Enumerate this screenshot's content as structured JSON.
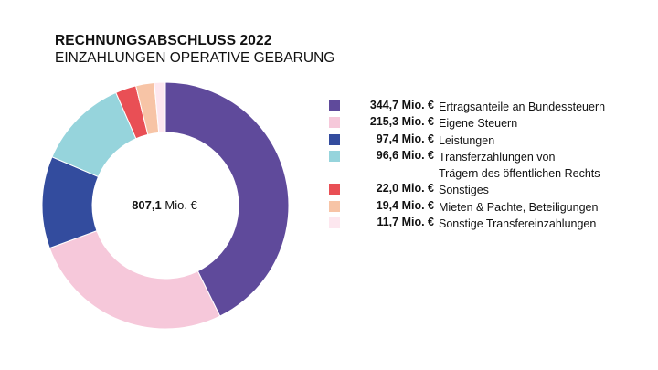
{
  "title": "RECHNUNGSABSCHLUSS 2022",
  "subtitle": "EINZAHLUNGEN OPERATIVE GEBARUNG",
  "center": {
    "value": "807,1",
    "unit": "Mio. €"
  },
  "chart_data": {
    "type": "pie",
    "donut": true,
    "title": "RECHNUNGSABSCHLUSS 2022",
    "subtitle": "EINZAHLUNGEN OPERATIVE GEBARUNG",
    "total_label": "807,1 Mio. €",
    "legend_position": "right",
    "slices": [
      {
        "label": "Ertragsanteile an Bundessteuern",
        "value": 344.7,
        "value_label": "344,7 Mio. €",
        "color": "#5f4a9b"
      },
      {
        "label": "Eigene Steuern",
        "value": 215.3,
        "value_label": "215,3 Mio. €",
        "color": "#f6c8da"
      },
      {
        "label": "Leistungen",
        "value": 97.4,
        "value_label": "97,4 Mio. €",
        "color": "#334c9e"
      },
      {
        "label": "Transferzahlungen von Trägern des öffentlichen Rechts",
        "label_lines": [
          "Transferzahlungen von",
          "Trägern des öffentlichen Rechts"
        ],
        "value": 96.6,
        "value_label": "96,6 Mio. €",
        "color": "#96d4dc"
      },
      {
        "label": "Sonstiges",
        "value": 22.0,
        "value_label": "22,0 Mio. €",
        "color": "#e94f55"
      },
      {
        "label": "Mieten & Pachte, Beteiligungen",
        "value": 19.4,
        "value_label": "19,4 Mio. €",
        "color": "#f7c4a6"
      },
      {
        "label": "Sonstige Transfereinzahlungen",
        "value": 11.7,
        "value_label": "11,7 Mio. €",
        "color": "#fde7ef"
      }
    ]
  }
}
